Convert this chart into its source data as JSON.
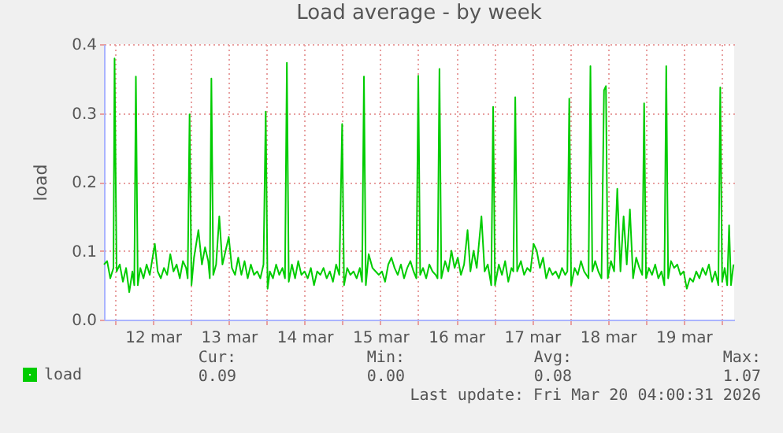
{
  "chart_data": {
    "type": "line",
    "title": "Load average - by week",
    "ylabel": "load",
    "x": [
      "2026-03-11T20:30",
      "2026-03-11T21:30",
      "2026-03-11T22:30",
      "2026-03-11T23:30",
      "2026-03-11T23:51",
      "2026-03-12T00:30",
      "2026-03-12T01:30",
      "2026-03-12T02:30",
      "2026-03-12T03:30",
      "2026-03-12T04:30",
      "2026-03-12T05:30",
      "2026-03-12T06:06",
      "2026-03-12T06:36",
      "2026-03-12T07:12",
      "2026-03-12T08:00",
      "2026-03-12T09:00",
      "2026-03-12T10:00",
      "2026-03-12T11:00",
      "2026-03-12T12:36",
      "2026-03-12T13:30",
      "2026-03-12T14:30",
      "2026-03-12T15:30",
      "2026-03-12T16:30",
      "2026-03-12T17:30",
      "2026-03-12T18:30",
      "2026-03-12T19:30",
      "2026-03-12T20:30",
      "2026-03-12T21:30",
      "2026-03-12T22:30",
      "2026-03-12T23:00",
      "2026-03-12T23:36",
      "2026-03-13T00:12",
      "2026-03-13T01:00",
      "2026-03-13T02:24",
      "2026-03-13T03:30",
      "2026-03-13T04:30",
      "2026-03-13T05:30",
      "2026-03-13T06:00",
      "2026-03-13T06:30",
      "2026-03-13T07:06",
      "2026-03-13T08:00",
      "2026-03-13T09:00",
      "2026-03-13T10:00",
      "2026-03-13T11:00",
      "2026-03-13T12:00",
      "2026-03-13T13:00",
      "2026-03-13T14:00",
      "2026-03-13T15:00",
      "2026-03-13T16:00",
      "2026-03-13T17:00",
      "2026-03-13T18:00",
      "2026-03-13T19:00",
      "2026-03-13T20:00",
      "2026-03-13T21:00",
      "2026-03-13T22:00",
      "2026-03-13T23:00",
      "2026-03-13T23:42",
      "2026-03-14T00:18",
      "2026-03-14T01:00",
      "2026-03-14T02:00",
      "2026-03-14T03:00",
      "2026-03-14T04:00",
      "2026-03-14T05:00",
      "2026-03-14T05:48",
      "2026-03-14T06:24",
      "2026-03-14T07:00",
      "2026-03-14T08:00",
      "2026-03-14T09:00",
      "2026-03-14T10:00",
      "2026-03-14T11:00",
      "2026-03-14T12:00",
      "2026-03-14T13:00",
      "2026-03-14T14:00",
      "2026-03-14T15:00",
      "2026-03-14T16:00",
      "2026-03-14T17:00",
      "2026-03-14T18:00",
      "2026-03-14T19:00",
      "2026-03-14T20:00",
      "2026-03-14T21:00",
      "2026-03-14T22:00",
      "2026-03-14T23:00",
      "2026-03-14T23:54",
      "2026-03-15T00:30",
      "2026-03-15T01:30",
      "2026-03-15T02:30",
      "2026-03-15T03:30",
      "2026-03-15T04:30",
      "2026-03-15T05:30",
      "2026-03-15T06:12",
      "2026-03-15T06:48",
      "2026-03-15T07:24",
      "2026-03-15T08:18",
      "2026-03-15T09:30",
      "2026-03-15T10:30",
      "2026-03-15T11:30",
      "2026-03-15T12:30",
      "2026-03-15T13:30",
      "2026-03-15T14:30",
      "2026-03-15T15:30",
      "2026-03-15T16:30",
      "2026-03-15T17:30",
      "2026-03-15T18:30",
      "2026-03-15T19:30",
      "2026-03-15T20:30",
      "2026-03-15T21:30",
      "2026-03-15T22:30",
      "2026-03-15T23:24",
      "2026-03-16T00:00",
      "2026-03-16T00:36",
      "2026-03-16T01:30",
      "2026-03-16T02:30",
      "2026-03-16T03:30",
      "2026-03-16T04:30",
      "2026-03-16T05:30",
      "2026-03-16T06:06",
      "2026-03-16T06:42",
      "2026-03-16T07:18",
      "2026-03-16T08:30",
      "2026-03-16T09:30",
      "2026-03-16T10:30",
      "2026-03-16T11:30",
      "2026-03-16T12:30",
      "2026-03-16T13:30",
      "2026-03-16T14:30",
      "2026-03-16T15:36",
      "2026-03-16T16:30",
      "2026-03-16T17:30",
      "2026-03-16T18:30",
      "2026-03-16T20:00",
      "2026-03-16T21:00",
      "2026-03-16T22:00",
      "2026-03-16T23:06",
      "2026-03-16T23:42",
      "2026-03-17T00:18",
      "2026-03-17T01:30",
      "2026-03-17T02:30",
      "2026-03-17T03:30",
      "2026-03-17T04:30",
      "2026-03-17T05:30",
      "2026-03-17T06:06",
      "2026-03-17T06:42",
      "2026-03-17T07:18",
      "2026-03-17T08:30",
      "2026-03-17T09:30",
      "2026-03-17T10:30",
      "2026-03-17T11:30",
      "2026-03-17T12:30",
      "2026-03-17T13:30",
      "2026-03-17T14:30",
      "2026-03-17T15:30",
      "2026-03-17T16:30",
      "2026-03-17T17:30",
      "2026-03-17T18:30",
      "2026-03-17T19:30",
      "2026-03-17T20:30",
      "2026-03-17T21:30",
      "2026-03-17T22:30",
      "2026-03-17T23:12",
      "2026-03-17T23:48",
      "2026-03-18T00:24",
      "2026-03-18T01:30",
      "2026-03-18T02:30",
      "2026-03-18T03:30",
      "2026-03-18T04:30",
      "2026-03-18T05:54",
      "2026-03-18T06:30",
      "2026-03-18T07:06",
      "2026-03-18T08:00",
      "2026-03-18T09:00",
      "2026-03-18T10:00",
      "2026-03-18T10:48",
      "2026-03-18T11:24",
      "2026-03-18T12:00",
      "2026-03-18T13:00",
      "2026-03-18T14:00",
      "2026-03-18T15:00",
      "2026-03-18T16:00",
      "2026-03-18T17:00",
      "2026-03-18T18:00",
      "2026-03-18T19:00",
      "2026-03-18T20:00",
      "2026-03-18T21:00",
      "2026-03-18T22:00",
      "2026-03-18T22:54",
      "2026-03-18T23:30",
      "2026-03-19T00:06",
      "2026-03-19T01:00",
      "2026-03-19T02:00",
      "2026-03-19T03:00",
      "2026-03-19T04:00",
      "2026-03-19T05:00",
      "2026-03-19T05:54",
      "2026-03-19T06:30",
      "2026-03-19T07:06",
      "2026-03-19T08:00",
      "2026-03-19T09:00",
      "2026-03-19T10:00",
      "2026-03-19T11:00",
      "2026-03-19T12:00",
      "2026-03-19T13:00",
      "2026-03-19T14:00",
      "2026-03-19T15:00",
      "2026-03-19T16:00",
      "2026-03-19T17:00",
      "2026-03-19T18:00",
      "2026-03-19T19:00",
      "2026-03-19T20:00",
      "2026-03-19T21:00",
      "2026-03-19T22:00",
      "2026-03-19T23:00",
      "2026-03-19T23:36",
      "2026-03-20T00:12",
      "2026-03-20T01:00",
      "2026-03-20T01:48",
      "2026-03-20T02:24",
      "2026-03-20T03:00",
      "2026-03-20T03:48"
    ],
    "series": [
      {
        "name": "load",
        "color": "#00cc00",
        "values": [
          0.08,
          0.085,
          0.06,
          0.075,
          0.379,
          0.07,
          0.08,
          0.055,
          0.075,
          0.04,
          0.07,
          0.05,
          0.353,
          0.05,
          0.075,
          0.06,
          0.08,
          0.065,
          0.11,
          0.07,
          0.06,
          0.075,
          0.065,
          0.095,
          0.07,
          0.08,
          0.06,
          0.085,
          0.075,
          0.06,
          0.298,
          0.05,
          0.09,
          0.13,
          0.08,
          0.105,
          0.085,
          0.06,
          0.35,
          0.065,
          0.08,
          0.15,
          0.08,
          0.1,
          0.12,
          0.075,
          0.065,
          0.09,
          0.065,
          0.085,
          0.06,
          0.08,
          0.065,
          0.07,
          0.06,
          0.08,
          0.302,
          0.045,
          0.07,
          0.06,
          0.08,
          0.065,
          0.075,
          0.06,
          0.373,
          0.055,
          0.08,
          0.06,
          0.085,
          0.065,
          0.07,
          0.06,
          0.075,
          0.05,
          0.07,
          0.065,
          0.075,
          0.06,
          0.07,
          0.055,
          0.08,
          0.065,
          0.284,
          0.05,
          0.075,
          0.065,
          0.07,
          0.06,
          0.075,
          0.055,
          0.353,
          0.05,
          0.095,
          0.075,
          0.07,
          0.065,
          0.07,
          0.055,
          0.08,
          0.09,
          0.075,
          0.065,
          0.08,
          0.06,
          0.075,
          0.085,
          0.07,
          0.06,
          0.354,
          0.065,
          0.075,
          0.06,
          0.08,
          0.07,
          0.065,
          0.06,
          0.364,
          0.06,
          0.085,
          0.07,
          0.1,
          0.075,
          0.09,
          0.065,
          0.08,
          0.13,
          0.07,
          0.1,
          0.075,
          0.15,
          0.07,
          0.08,
          0.05,
          0.309,
          0.05,
          0.08,
          0.065,
          0.085,
          0.055,
          0.075,
          0.07,
          0.323,
          0.07,
          0.085,
          0.065,
          0.075,
          0.07,
          0.11,
          0.1,
          0.075,
          0.09,
          0.06,
          0.075,
          0.065,
          0.07,
          0.06,
          0.075,
          0.065,
          0.07,
          0.321,
          0.05,
          0.075,
          0.065,
          0.085,
          0.07,
          0.06,
          0.368,
          0.07,
          0.085,
          0.07,
          0.06,
          0.333,
          0.339,
          0.06,
          0.085,
          0.07,
          0.19,
          0.07,
          0.15,
          0.08,
          0.16,
          0.06,
          0.09,
          0.075,
          0.065,
          0.314,
          0.06,
          0.075,
          0.065,
          0.08,
          0.06,
          0.07,
          0.05,
          0.368,
          0.06,
          0.085,
          0.075,
          0.08,
          0.065,
          0.07,
          0.045,
          0.06,
          0.055,
          0.07,
          0.06,
          0.075,
          0.065,
          0.08,
          0.055,
          0.07,
          0.05,
          0.337,
          0.055,
          0.075,
          0.05,
          0.137,
          0.05,
          0.08
        ]
      }
    ],
    "xlim": [
      "2026-03-11T20:30",
      "2026-03-20T04:00"
    ],
    "xticks": [
      {
        "value": "2026-03-12T00:00",
        "label": null
      },
      {
        "value": "2026-03-12T12:00",
        "label": "12 mar"
      },
      {
        "value": "2026-03-13T00:00",
        "label": null
      },
      {
        "value": "2026-03-13T12:00",
        "label": "13 mar"
      },
      {
        "value": "2026-03-14T00:00",
        "label": null
      },
      {
        "value": "2026-03-14T12:00",
        "label": "14 mar"
      },
      {
        "value": "2026-03-15T00:00",
        "label": null
      },
      {
        "value": "2026-03-15T12:00",
        "label": "15 mar"
      },
      {
        "value": "2026-03-16T00:00",
        "label": null
      },
      {
        "value": "2026-03-16T12:00",
        "label": "16 mar"
      },
      {
        "value": "2026-03-17T00:00",
        "label": null
      },
      {
        "value": "2026-03-17T12:00",
        "label": "17 mar"
      },
      {
        "value": "2026-03-18T00:00",
        "label": null
      },
      {
        "value": "2026-03-18T12:00",
        "label": "18 mar"
      },
      {
        "value": "2026-03-19T00:00",
        "label": null
      },
      {
        "value": "2026-03-19T12:00",
        "label": "19 mar"
      },
      {
        "value": "2026-03-20T00:00",
        "label": null
      }
    ],
    "ylim": [
      0,
      0.4
    ],
    "yticks": [
      {
        "value": 0,
        "label": "0.0"
      },
      {
        "value": 0.1,
        "label": "0.1"
      },
      {
        "value": 0.2,
        "label": "0.2"
      },
      {
        "value": 0.3,
        "label": "0.3"
      },
      {
        "value": 0.4,
        "label": "0.4"
      }
    ],
    "grid": true,
    "legend": "bottom left",
    "annotations": [
      "Cur:",
      "Min:",
      "Avg:",
      "Max:",
      "0.09",
      "0.00",
      "0.08",
      "1.07",
      "Last update: Fri Mar 20 04:00:31 2026"
    ]
  }
}
